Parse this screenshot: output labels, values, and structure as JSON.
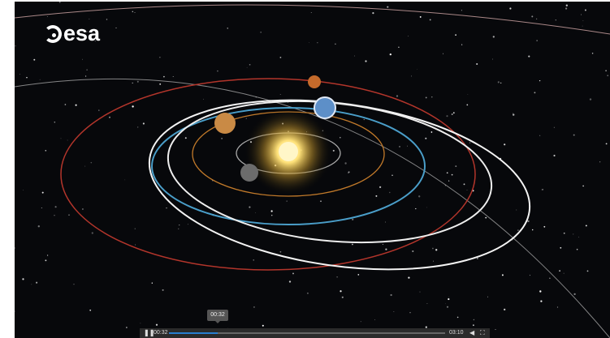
{
  "logo": {
    "text": "esa"
  },
  "player": {
    "tooltip": "00:32",
    "current_time": "00:32",
    "duration": "03:10"
  }
}
